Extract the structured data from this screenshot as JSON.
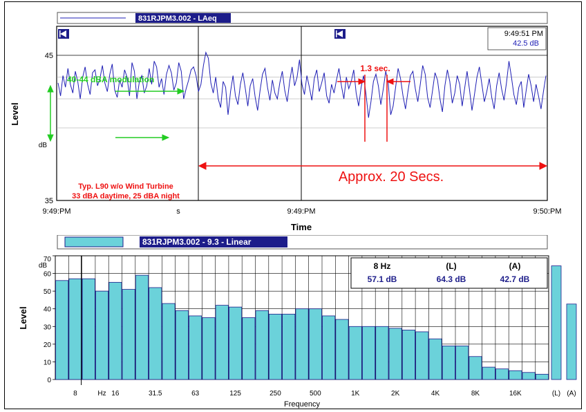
{
  "chart_data": [
    {
      "type": "line",
      "legend_label": "831RJPM3.002 - LAeq",
      "ylabel": "Level",
      "xlabel": "Time",
      "y_unit_label": "dB",
      "y_ticks": [
        {
          "value": 45,
          "label": "45"
        },
        {
          "value": 35,
          "label": "35"
        }
      ],
      "ylim": [
        35,
        47
      ],
      "x_ticks": [
        {
          "label": "9:49:PM",
          "pos": "left"
        },
        {
          "label": "s",
          "pos": "quarter"
        },
        {
          "label": "9:49:PM",
          "pos": "middle"
        },
        {
          "label": "9:50:PM",
          "pos": "right"
        }
      ],
      "cursor_readout": {
        "time": "9:49:51 PM",
        "level": "42.5 dB"
      },
      "series_values": [
        43.1,
        42.2,
        43.6,
        42.8,
        44.1,
        43.0,
        42.4,
        43.9,
        43.2,
        42.0,
        43.5,
        44.2,
        43.0,
        42.3,
        43.8,
        44.0,
        42.9,
        43.4,
        44.3,
        43.1,
        42.5,
        43.7,
        44.4,
        42.6,
        42.1,
        43.3,
        42.8,
        44.0,
        43.5,
        42.2,
        44.5,
        43.9,
        42.0,
        43.2,
        43.6,
        42.4,
        42.9,
        44.1,
        43.0,
        44.6,
        44.2,
        42.8,
        43.4,
        42.3,
        43.7,
        44.3,
        43.8,
        42.6,
        43.1,
        44.5,
        43.9,
        42.0,
        42.7,
        43.3,
        44.0,
        44.2,
        43.6,
        42.5,
        43.0,
        44.3,
        45.2,
        44.8,
        43.1,
        42.4,
        43.5,
        42.0,
        41.4,
        43.2,
        42.8,
        40.9,
        42.5,
        43.6,
        42.2,
        41.6,
        43.0,
        43.8,
        42.7,
        41.5,
        42.9,
        43.4,
        42.1,
        41.2,
        42.6,
        43.7,
        44.1,
        42.8,
        41.9,
        43.3,
        42.4,
        42.0,
        43.1,
        43.9,
        42.6,
        41.8,
        43.2,
        44.2,
        42.9,
        43.5,
        44.7,
        43.0,
        42.3,
        43.6,
        42.8,
        41.9,
        43.4,
        44.0,
        42.5,
        43.1,
        43.8,
        42.2,
        41.7,
        43.0,
        42.4,
        43.3,
        44.1,
        42.9,
        42.0,
        43.5,
        42.7,
        43.2,
        44.0,
        42.4,
        41.5,
        42.8,
        43.6,
        42.3,
        40.7,
        41.8,
        43.2,
        43.7,
        42.9,
        41.6,
        42.7,
        43.9,
        43.1,
        40.9,
        41.5,
        42.8,
        44.1,
        43.4,
        42.2,
        41.3,
        42.5,
        43.6,
        43.9,
        42.7,
        41.8,
        43.0,
        44.3,
        43.7,
        42.1,
        41.4,
        42.6,
        43.8,
        43.3,
        42.0,
        41.1,
        42.9,
        44.0,
        43.2,
        41.7,
        42.4,
        43.6,
        43.0,
        41.5,
        42.7,
        43.9,
        42.6,
        41.2,
        42.3,
        43.5,
        44.2,
        43.0,
        41.8,
        42.5,
        43.4,
        42.1,
        41.3,
        42.9,
        43.8,
        42.7,
        41.9,
        43.1,
        44.6,
        43.5,
        42.3,
        41.6,
        42.8,
        43.2,
        41.4,
        42.6,
        43.7,
        42.9,
        41.8,
        43.0,
        42.2,
        41.3,
        42.5,
        43.6
      ]
    },
    {
      "type": "bar",
      "legend_label": "831RJPM3.002 - 9.3 - Linear",
      "ylabel": "Level",
      "xlabel": "Frequency",
      "y_unit_label": "dB",
      "ylim": [
        0,
        70
      ],
      "y_ticks": [
        "0",
        "10",
        "20",
        "30",
        "40",
        "50",
        "60",
        "70"
      ],
      "x_tick_labels": [
        {
          "label": "8",
          "band": 2
        },
        {
          "label": "Hz",
          "band": 4
        },
        {
          "label": "16",
          "band": 5
        },
        {
          "label": "31.5",
          "band": 8
        },
        {
          "label": "63",
          "band": 11
        },
        {
          "label": "125",
          "band": 14
        },
        {
          "label": "250",
          "band": 17
        },
        {
          "label": "500",
          "band": 20
        },
        {
          "label": "1K",
          "band": 23
        },
        {
          "label": "2K",
          "band": 26
        },
        {
          "label": "4K",
          "band": 29
        },
        {
          "label": "8K",
          "band": 32
        },
        {
          "label": "16K",
          "band": 35
        }
      ],
      "values": [
        56,
        57,
        57,
        50,
        55,
        51,
        59,
        52,
        43,
        39,
        36,
        35,
        42,
        41,
        35,
        39,
        37,
        37,
        40,
        40,
        36,
        34,
        30,
        30,
        30,
        29,
        28,
        27,
        23,
        19,
        19,
        13,
        7,
        6,
        5,
        4,
        3
      ],
      "overall": [
        {
          "label": "(L)",
          "value": 64.3
        },
        {
          "label": "(A)",
          "value": 42.7
        }
      ],
      "readout": {
        "freq_label": "8 Hz",
        "freq_value": "57.1 dB",
        "l_label": "(L)",
        "l_value": "64.3 dB",
        "a_label": "(A)",
        "a_value": "42.7 dB"
      },
      "cursor_band": 2
    }
  ],
  "annotations": {
    "modulation": "40-44 dBA modulation",
    "interval": "1.3 sec.",
    "approx": "Approx. 20 Secs.",
    "l90_line1": "Typ. L90 w/o Wind Turbine",
    "l90_line2": "33 dBA daytime, 25 dBA night"
  },
  "colors": {
    "series": "#1d1db4",
    "bar_fill": "#6bd2da",
    "annotation_green": "#22cc22",
    "annotation_red": "#ee1111",
    "legend_bg": "#1d1d8a"
  }
}
